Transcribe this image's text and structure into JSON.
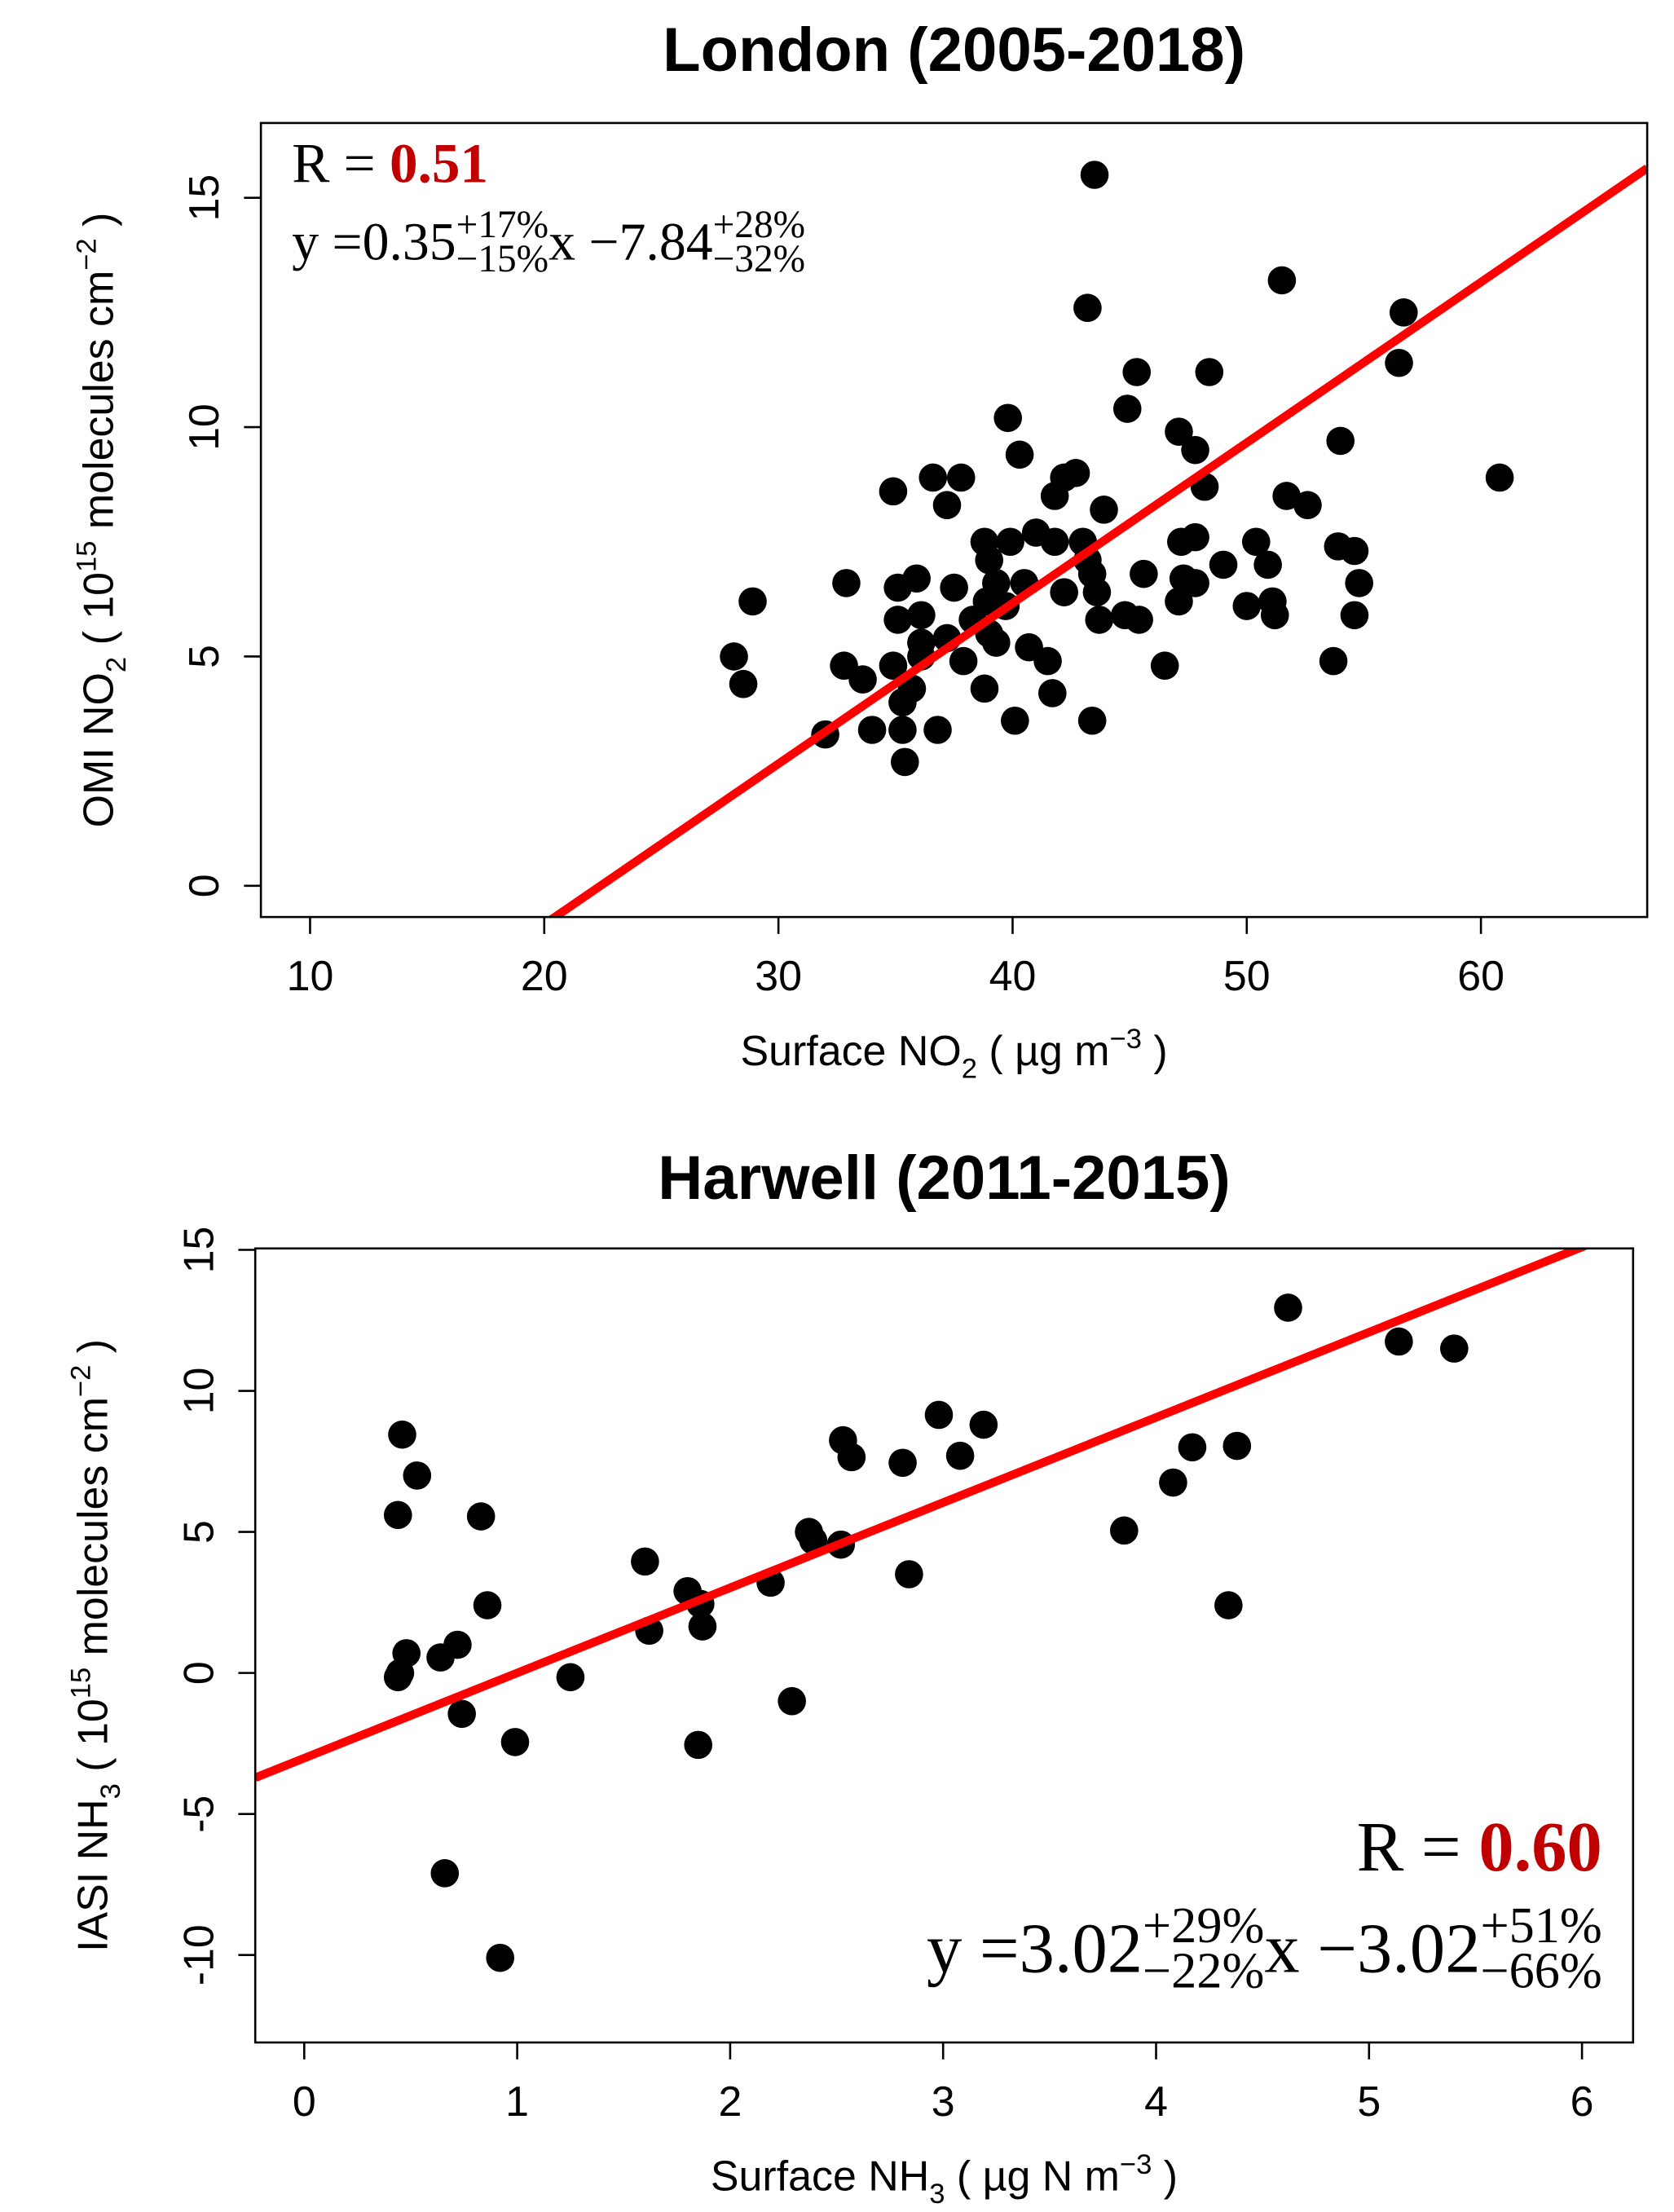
{
  "chart_data": [
    {
      "type": "scatter",
      "title": "London (2005-2018)",
      "xlabel": [
        {
          "text": "Surface NO"
        },
        {
          "text": "2",
          "shift": "sub"
        },
        {
          "text": " ( µg m"
        },
        {
          "text": "−3",
          "shift": "super"
        },
        {
          "text": " )"
        }
      ],
      "ylabel": [
        {
          "text": "OMI NO"
        },
        {
          "text": "2",
          "shift": "sub"
        },
        {
          "text": " ( 10"
        },
        {
          "text": "15",
          "shift": "super"
        },
        {
          "text": " molecules  cm"
        },
        {
          "text": "−2",
          "shift": "super"
        },
        {
          "text": " )"
        }
      ],
      "xlim": [
        7.9,
        67.1
      ],
      "ylim": [
        -0.68,
        16.63
      ],
      "xticks": [
        10,
        20,
        30,
        40,
        50,
        60
      ],
      "yticks": [
        0,
        5,
        10,
        15
      ],
      "color": "#000000",
      "x": [
        43.5,
        51.5,
        56.7,
        56.5,
        43.2,
        45.3,
        48.4,
        44.9,
        39.8,
        47.1,
        47.8,
        54.0,
        40.3,
        60.8,
        36.6,
        37.8,
        42.7,
        42.2,
        48.2,
        34.9,
        37.2,
        41.8,
        51.7,
        52.6,
        43.9,
        38.8,
        39.9,
        41.0,
        41.8,
        43.0,
        47.2,
        47.8,
        50.4,
        53.9,
        54.6,
        43.2,
        45.6,
        49.0,
        50.9,
        39.0,
        35.9,
        32.9,
        35.1,
        37.5,
        39.3,
        40.5,
        43.4,
        43.6,
        47.3,
        47.8,
        54.8,
        47.1,
        42.2,
        50.0,
        51.1,
        28.9,
        36.1,
        35.1,
        38.9,
        39.7,
        38.3,
        43.7,
        44.8,
        45.4,
        51.2,
        54.6,
        37.2,
        39.0,
        39.3,
        40.7,
        36.1,
        37.9,
        41.5,
        46.5,
        53.7,
        28.1,
        32.8,
        33.6,
        28.5,
        35.7,
        38.8,
        41.7,
        35.3,
        35.3,
        34.0,
        32.0,
        36.8,
        40.1,
        43.4,
        35.4,
        34.9,
        36.1
      ],
      "y": [
        15.5,
        13.2,
        12.5,
        11.4,
        12.6,
        11.2,
        11.2,
        10.4,
        10.2,
        9.9,
        9.5,
        9.7,
        9.4,
        8.9,
        8.9,
        8.9,
        9.0,
        8.9,
        8.7,
        8.6,
        8.3,
        8.5,
        8.5,
        8.3,
        8.2,
        7.5,
        7.5,
        7.7,
        7.5,
        7.5,
        7.5,
        7.6,
        7.5,
        7.4,
        7.3,
        7.1,
        6.8,
        7.0,
        7.0,
        7.1,
        6.7,
        6.6,
        6.5,
        6.5,
        6.6,
        6.6,
        6.8,
        6.4,
        6.7,
        6.6,
        6.6,
        6.2,
        6.4,
        6.1,
        6.2,
        6.2,
        5.9,
        5.8,
        6.2,
        6.1,
        5.8,
        5.8,
        5.9,
        5.8,
        5.9,
        5.9,
        5.4,
        5.5,
        5.3,
        5.2,
        5.0,
        4.9,
        4.9,
        4.8,
        4.9,
        5.0,
        4.8,
        4.5,
        4.4,
        4.3,
        4.3,
        4.2,
        4.0,
        3.4,
        3.4,
        3.3,
        3.4,
        3.6,
        3.6,
        2.7,
        4.8,
        5.3
      ],
      "fit": {
        "slope": 0.35,
        "intercept": -7.84,
        "color": "#ff0000"
      },
      "annotation": {
        "position": "top-left",
        "r_label": "R = ",
        "r_value": "0.51",
        "r_color": "#c00000",
        "equation": [
          {
            "text": "y =  "
          },
          {
            "text": "0.35",
            "sup": "+17%",
            "sub": "−15%"
          },
          {
            "text": "x − "
          },
          {
            "text": "7.84",
            "sup": "+28%",
            "sub": "−32%"
          }
        ]
      }
    },
    {
      "type": "scatter",
      "title": "Harwell (2011-2015)",
      "xlabel": [
        {
          "text": "Surface NH"
        },
        {
          "text": "3",
          "shift": "sub"
        },
        {
          "text": " ( µg N m"
        },
        {
          "text": "−3",
          "shift": "super"
        },
        {
          "text": " )"
        }
      ],
      "ylabel": [
        {
          "text": "IASI NH"
        },
        {
          "text": "3",
          "shift": "sub"
        },
        {
          "text": " ( 10"
        },
        {
          "text": "15",
          "shift": "super"
        },
        {
          "text": " molecules  cm"
        },
        {
          "text": "−2",
          "shift": "super"
        },
        {
          "text": " )"
        }
      ],
      "xlim": [
        -0.23,
        6.24
      ],
      "ylim": [
        -13.1,
        15.05
      ],
      "xticks": [
        0,
        1,
        2,
        3,
        4,
        5,
        6
      ],
      "yticks": [
        -10,
        -5,
        0,
        5,
        10,
        15
      ],
      "color": "#000000",
      "x": [
        4.62,
        5.14,
        5.4,
        0.46,
        2.98,
        3.19,
        2.53,
        2.57,
        3.08,
        2.81,
        0.53,
        4.17,
        4.38,
        4.08,
        0.44,
        0.83,
        3.85,
        2.37,
        2.39,
        2.52,
        1.6,
        2.84,
        2.19,
        1.8,
        1.86,
        0.86,
        4.34,
        1.87,
        1.62,
        0.48,
        0.72,
        0.64,
        0.45,
        0.44,
        1.25,
        0.74,
        2.29,
        0.99,
        1.85,
        0.66,
        0.92
      ],
      "y": [
        12.95,
        11.75,
        11.5,
        8.45,
        9.15,
        8.8,
        8.25,
        7.65,
        7.7,
        7.45,
        7.0,
        8.0,
        8.05,
        6.75,
        5.6,
        5.55,
        5.05,
        5.0,
        4.7,
        4.55,
        3.95,
        3.5,
        3.2,
        2.9,
        2.45,
        2.4,
        2.4,
        1.65,
        1.5,
        0.7,
        1.0,
        0.55,
        0.0,
        -0.15,
        -0.15,
        -1.45,
        -1.0,
        -2.45,
        -2.55,
        -7.1,
        -10.1
      ],
      "fit": {
        "slope": 3.02,
        "intercept": -3.02,
        "color": "#ff0000"
      },
      "annotation": {
        "position": "bottom-right",
        "r_label": "R = ",
        "r_value": "0.60",
        "r_color": "#c00000",
        "equation": [
          {
            "text": "y =  "
          },
          {
            "text": "3.02",
            "sup": "+29%",
            "sub": "−22%"
          },
          {
            "text": "x − "
          },
          {
            "text": "3.02",
            "sup": "+51%",
            "sub": "−66%"
          }
        ]
      }
    }
  ]
}
